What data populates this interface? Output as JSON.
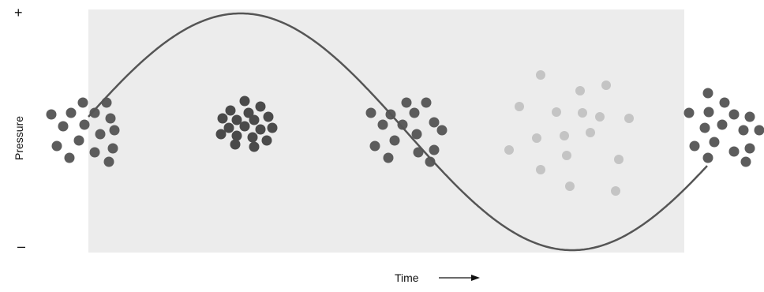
{
  "axis": {
    "y_label": "Pressure",
    "y_top_symbol": "+",
    "y_bottom_symbol": "–",
    "x_label": "Time"
  },
  "colors": {
    "panel": "#ececec",
    "curve": "#555555",
    "dense_dots": "#4a4a4a",
    "medium_dots": "#5c5c5c",
    "light_dots": "#c4c4c4",
    "text": "#111111"
  },
  "wave": {
    "type": "sine",
    "cycles": 1.25,
    "start_phase": "below-peak",
    "peak_at_fraction": 0.22,
    "trough_at_fraction": 0.78
  },
  "particle_clusters": [
    {
      "name": "cluster-medium-left",
      "density": "medium"
    },
    {
      "name": "cluster-compression",
      "density": "high"
    },
    {
      "name": "cluster-medium-center",
      "density": "medium"
    },
    {
      "name": "cluster-rarefaction",
      "density": "low"
    },
    {
      "name": "cluster-medium-right",
      "density": "medium"
    }
  ]
}
